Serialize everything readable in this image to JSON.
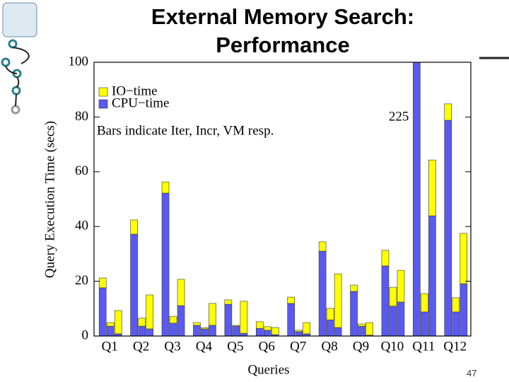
{
  "title": "External Memory Search: Performance",
  "page_number": "47",
  "chart_data": {
    "type": "bar",
    "stacked": true,
    "y_label": "Query Execution Time (secs)",
    "x_label": "Queries",
    "annotation": "Bars indicate Iter, Incr, VM resp.",
    "categories": [
      "Q1",
      "Q2",
      "Q3",
      "Q4",
      "Q5",
      "Q6",
      "Q7",
      "Q8",
      "Q9",
      "Q10",
      "Q11",
      "Q12"
    ],
    "series": [
      {
        "name": "CPU−time",
        "color": "#5a5af0",
        "values": [
          [
            17.6,
            3.6,
            0.8
          ],
          [
            37.2,
            3.6,
            2.6
          ],
          [
            52.2,
            4.7,
            11.1
          ],
          [
            3.9,
            2.6,
            3.9
          ],
          [
            11.6,
            3.6,
            1.0
          ],
          [
            2.8,
            2.1,
            0.5
          ],
          [
            11.9,
            1.6,
            0.8
          ],
          [
            31.0,
            5.9,
            3.1
          ],
          [
            16.3,
            3.6,
            0.3
          ],
          [
            25.6,
            10.9,
            12.4
          ],
          [
            225,
            8.8,
            43.9
          ],
          [
            78.8,
            8.8,
            19.1
          ]
        ]
      },
      {
        "name": "IO−time",
        "color": "#ffff00",
        "values": [
          [
            3.6,
            1.3,
            8.5
          ],
          [
            5.2,
            2.9,
            12.4
          ],
          [
            4.1,
            2.5,
            9.6
          ],
          [
            1.0,
            0.5,
            8.0
          ],
          [
            1.6,
            0.3,
            11.7
          ],
          [
            2.4,
            1.3,
            2.6
          ],
          [
            2.3,
            0.5,
            4.1
          ],
          [
            3.4,
            4.2,
            19.6
          ],
          [
            2.3,
            0.8,
            4.6
          ],
          [
            5.7,
            6.9,
            11.6
          ],
          [
            null,
            6.7,
            20.4
          ],
          [
            6.0,
            5.2,
            18.4
          ]
        ]
      }
    ],
    "ylim": [
      0,
      100
    ],
    "yticks": [
      0,
      20,
      40,
      60,
      80,
      100
    ],
    "legend": "upper left",
    "grid": false
  }
}
